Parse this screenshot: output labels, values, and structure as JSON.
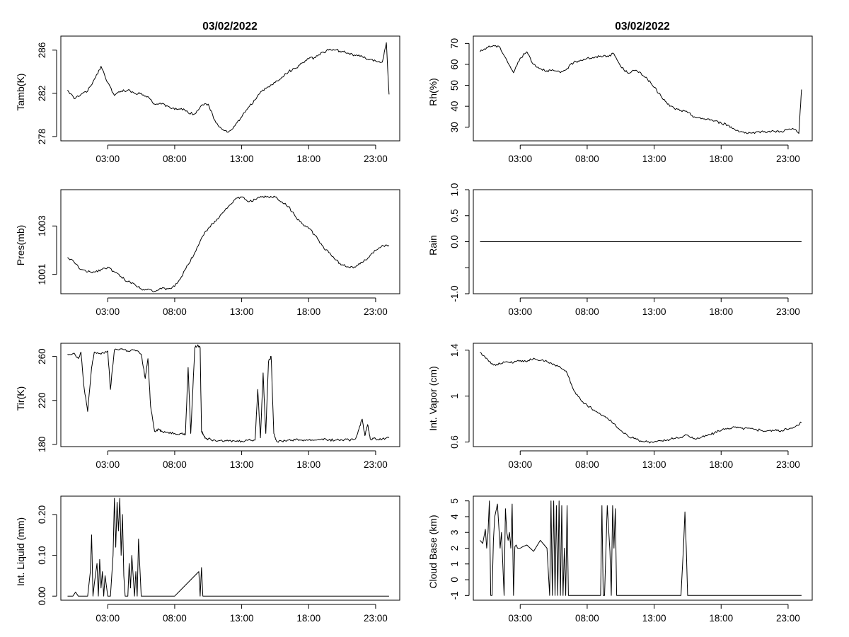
{
  "titles": {
    "left": "03/02/2022",
    "right": "03/02/2022"
  },
  "x_axis": {
    "ticks": [
      3,
      8,
      13,
      18,
      23
    ],
    "tick_labels": [
      "03:00",
      "08:00",
      "13:00",
      "18:00",
      "23:00"
    ],
    "range_hours": [
      -0.5,
      24.8
    ]
  },
  "chart_data": [
    {
      "type": "line",
      "id": "tamb",
      "column": "left",
      "row": 0,
      "ylabel": "Tamb(K)",
      "ylim": [
        277.6,
        287.3
      ],
      "yticks": [
        278,
        282,
        286
      ],
      "series": [
        {
          "x_hours": [
            0,
            0.5,
            1,
            1.5,
            2,
            2.5,
            3,
            3.5,
            4,
            4.5,
            5,
            5.5,
            6,
            6.5,
            7,
            7.5,
            8,
            8.5,
            9,
            9.5,
            10,
            10.5,
            11,
            11.5,
            12,
            12.5,
            13,
            13.5,
            14,
            14.5,
            15,
            15.5,
            16,
            16.5,
            17,
            17.5,
            18,
            18.5,
            19,
            19.5,
            20,
            20.5,
            21,
            21.5,
            22,
            22.5,
            23,
            23.5,
            23.8,
            24
          ],
          "values": [
            282.3,
            281.5,
            281.9,
            282.2,
            283.3,
            284.5,
            283.0,
            281.8,
            282.2,
            282.3,
            282.0,
            282.0,
            281.7,
            281.0,
            281.0,
            280.8,
            280.5,
            280.6,
            280.2,
            280.1,
            280.9,
            281.0,
            279.5,
            278.7,
            278.4,
            279.0,
            279.8,
            280.7,
            281.4,
            282.2,
            282.6,
            283.0,
            283.5,
            284.0,
            284.3,
            284.8,
            285.2,
            285.3,
            285.8,
            286.0,
            286.0,
            285.9,
            285.7,
            285.5,
            285.4,
            285.1,
            285.0,
            284.9,
            286.7,
            281.9
          ]
        }
      ]
    },
    {
      "type": "line",
      "id": "rh",
      "column": "right",
      "row": 0,
      "ylabel": "Rh(%)",
      "ylim": [
        23.5,
        73.5
      ],
      "yticks": [
        30,
        40,
        50,
        60,
        70
      ],
      "series": [
        {
          "x_hours": [
            0,
            0.5,
            1,
            1.5,
            2,
            2.5,
            3,
            3.5,
            4,
            4.5,
            5,
            5.5,
            6,
            6.5,
            7,
            7.5,
            8,
            8.5,
            9,
            9.5,
            10,
            10.5,
            11,
            11.5,
            12,
            12.5,
            13,
            13.5,
            14,
            14.5,
            15,
            15.5,
            16,
            16.5,
            17,
            17.5,
            18,
            18.5,
            19,
            19.5,
            20,
            20.5,
            21,
            21.5,
            22,
            22.5,
            23,
            23.5,
            23.8,
            24
          ],
          "values": [
            66,
            68,
            69,
            68,
            62,
            56,
            63,
            66,
            60,
            58,
            57,
            57,
            56,
            58,
            61,
            62,
            63,
            63,
            64,
            64,
            65,
            59,
            56,
            57,
            56,
            53,
            49,
            45,
            41,
            39,
            38,
            37,
            35,
            34,
            34,
            33,
            32,
            31,
            29,
            28,
            27,
            27,
            28,
            28,
            28,
            28,
            29,
            29,
            27,
            48
          ]
        }
      ]
    },
    {
      "type": "line",
      "id": "pres",
      "column": "left",
      "row": 1,
      "ylabel": "Pres(mb)",
      "ylim": [
        1000.2,
        1004.5
      ],
      "yticks": [
        1001,
        1003
      ],
      "series": [
        {
          "x_hours": [
            0,
            0.5,
            1,
            1.5,
            2,
            2.5,
            3,
            3.5,
            4,
            4.5,
            5,
            5.5,
            6,
            6.5,
            7,
            7.5,
            8,
            8.5,
            9,
            9.5,
            10,
            10.5,
            11,
            11.5,
            12,
            12.5,
            13,
            13.5,
            14,
            14.5,
            15,
            15.5,
            16,
            16.5,
            17,
            17.5,
            18,
            18.5,
            19,
            19.5,
            20,
            20.5,
            21,
            21.5,
            22,
            22.5,
            23,
            23.5,
            24
          ],
          "values": [
            1001.7,
            1001.5,
            1001.2,
            1001.1,
            1001.1,
            1001.2,
            1001.3,
            1001.1,
            1000.9,
            1000.7,
            1000.6,
            1000.4,
            1000.4,
            1000.3,
            1000.4,
            1000.4,
            1000.5,
            1000.9,
            1001.4,
            1001.9,
            1002.5,
            1002.9,
            1003.2,
            1003.5,
            1003.8,
            1004.1,
            1004.2,
            1004.0,
            1004.1,
            1004.2,
            1004.2,
            1004.2,
            1004.0,
            1003.8,
            1003.4,
            1003.1,
            1002.9,
            1002.6,
            1002.2,
            1001.9,
            1001.6,
            1001.4,
            1001.3,
            1001.3,
            1001.5,
            1001.7,
            1002.0,
            1002.2,
            1002.2
          ]
        }
      ]
    },
    {
      "type": "line",
      "id": "rain",
      "column": "right",
      "row": 1,
      "ylabel": "Rain",
      "ylim": [
        -1.0,
        1.0
      ],
      "yticks": [
        -1.0,
        -0.5,
        0.0,
        0.5,
        1.0
      ],
      "ytick_labels": [
        "-1.0",
        "",
        "0.0",
        "0.5",
        "1.0"
      ],
      "series": [
        {
          "x_hours": [
            0,
            24
          ],
          "values": [
            0,
            0
          ]
        }
      ]
    },
    {
      "type": "line",
      "id": "tir",
      "column": "left",
      "row": 2,
      "ylabel": "Tir(K)",
      "ylim": [
        178,
        272
      ],
      "yticks": [
        180,
        220,
        260
      ],
      "series": [
        {
          "x_hours": [
            0,
            0.5,
            0.8,
            1,
            1.2,
            1.5,
            1.8,
            2,
            2.5,
            3,
            3.2,
            3.5,
            4,
            4.5,
            5,
            5.5,
            5.8,
            6,
            6.2,
            6.5,
            6.8,
            7,
            7.5,
            8,
            8.5,
            8.8,
            9,
            9.2,
            9.5,
            9.7,
            9.9,
            10,
            10.1,
            10.3,
            10.5,
            11,
            11.5,
            12,
            12.5,
            13,
            13.5,
            14,
            14.2,
            14.4,
            14.6,
            14.8,
            15,
            15.2,
            15.4,
            15.6,
            16,
            16.5,
            17,
            17.5,
            18,
            18.5,
            19,
            19.5,
            20,
            20.5,
            21,
            21.5,
            21.8,
            22,
            22.2,
            22.4,
            22.6,
            23,
            23.5,
            24
          ],
          "values": [
            262,
            263,
            258,
            264,
            235,
            210,
            250,
            264,
            262,
            265,
            230,
            266,
            267,
            265,
            266,
            262,
            240,
            258,
            215,
            192,
            194,
            192,
            191,
            190,
            190,
            189,
            250,
            190,
            268,
            270,
            268,
            192,
            190,
            186,
            185,
            184,
            184,
            183,
            183,
            183,
            184,
            184,
            230,
            186,
            245,
            190,
            255,
            260,
            190,
            183,
            183,
            184,
            184,
            184,
            184,
            184,
            185,
            184,
            184,
            184,
            184,
            185,
            196,
            203,
            188,
            198,
            185,
            185,
            185,
            186
          ]
        }
      ]
    },
    {
      "type": "line",
      "id": "vapor",
      "column": "right",
      "row": 2,
      "ylabel": "Int. Vapor (cm)",
      "ylim": [
        0.56,
        1.46
      ],
      "yticks": [
        0.6,
        1.0,
        1.4
      ],
      "series": [
        {
          "x_hours": [
            0,
            0.5,
            1,
            1.5,
            2,
            2.5,
            3,
            3.5,
            4,
            4.5,
            5,
            5.5,
            6,
            6.5,
            7,
            7.5,
            8,
            8.5,
            9,
            9.5,
            10,
            10.5,
            11,
            11.5,
            12,
            12.5,
            13,
            13.5,
            14,
            14.5,
            15,
            15.5,
            16,
            16.5,
            17,
            17.5,
            18,
            18.5,
            19,
            19.5,
            20,
            20.5,
            21,
            21.5,
            22,
            22.5,
            23,
            23.5,
            24
          ],
          "values": [
            1.38,
            1.33,
            1.27,
            1.28,
            1.3,
            1.29,
            1.31,
            1.3,
            1.33,
            1.31,
            1.3,
            1.28,
            1.25,
            1.2,
            1.05,
            0.97,
            0.92,
            0.88,
            0.84,
            0.81,
            0.76,
            0.7,
            0.66,
            0.63,
            0.61,
            0.6,
            0.6,
            0.61,
            0.62,
            0.63,
            0.64,
            0.66,
            0.63,
            0.64,
            0.66,
            0.68,
            0.7,
            0.72,
            0.73,
            0.72,
            0.72,
            0.71,
            0.7,
            0.7,
            0.7,
            0.7,
            0.71,
            0.73,
            0.77
          ]
        }
      ]
    },
    {
      "type": "line",
      "id": "liquid",
      "column": "left",
      "row": 3,
      "ylabel": "Int. Liquid (mm)",
      "ylim": [
        -0.01,
        0.245
      ],
      "yticks": [
        0.0,
        0.1,
        0.2
      ],
      "ytick_labels": [
        "0.00",
        "0.10",
        "0.20"
      ],
      "series": [
        {
          "x_hours": [
            0,
            0.4,
            0.6,
            0.8,
            1.0,
            1.5,
            1.7,
            1.8,
            1.9,
            2.0,
            2.2,
            2.3,
            2.4,
            2.5,
            2.6,
            2.7,
            2.8,
            3.0,
            3.2,
            3.4,
            3.5,
            3.6,
            3.7,
            3.8,
            3.9,
            4.0,
            4.1,
            4.2,
            4.3,
            4.5,
            4.6,
            4.7,
            4.8,
            5.0,
            5.1,
            5.2,
            5.3,
            5.5,
            6.0,
            8.0,
            9.8,
            9.9,
            10.0,
            10.1,
            10.2,
            11,
            24
          ],
          "values": [
            0,
            0,
            0.01,
            0,
            0,
            0,
            0.06,
            0.15,
            0,
            0.03,
            0.08,
            0,
            0.09,
            0.02,
            0.06,
            0,
            0.05,
            0,
            0,
            0.1,
            0.24,
            0.12,
            0.23,
            0.16,
            0.24,
            0.1,
            0.2,
            0.05,
            0,
            0,
            0.08,
            0.02,
            0.1,
            0,
            0.06,
            0,
            0.14,
            0,
            0,
            0,
            0.06,
            0,
            0.07,
            0,
            0,
            0,
            0
          ]
        }
      ]
    },
    {
      "type": "line",
      "id": "cloudbase",
      "column": "right",
      "row": 3,
      "ylabel": "Cloud Base (km)",
      "ylim": [
        -1.3,
        5.3
      ],
      "yticks": [
        -1,
        0,
        1,
        2,
        3,
        4,
        5
      ],
      "series": [
        {
          "x_hours": [
            0,
            0.2,
            0.4,
            0.5,
            0.6,
            0.7,
            0.8,
            0.9,
            1.0,
            1.1,
            1.3,
            1.5,
            1.6,
            1.8,
            1.9,
            2.0,
            2.1,
            2.2,
            2.3,
            2.4,
            2.5,
            2.6,
            2.7,
            2.8,
            3.0,
            3.2,
            3.5,
            4.0,
            4.5,
            5.0,
            5.2,
            5.3,
            5.4,
            5.5,
            5.6,
            5.7,
            5.8,
            5.9,
            6.0,
            6.1,
            6.2,
            6.3,
            6.4,
            6.5,
            6.6,
            6.8,
            7,
            8,
            9,
            9.1,
            9.2,
            9.3,
            9.5,
            9.7,
            9.8,
            9.9,
            10.0,
            10.1,
            10.2,
            10.3,
            11,
            13,
            14.5,
            15.0,
            15.2,
            15.3,
            15.4,
            15.5,
            15.6,
            16,
            24
          ],
          "values": [
            2.5,
            2.3,
            3.2,
            2,
            3,
            5,
            -1,
            -1,
            2.5,
            4,
            4.8,
            2,
            3,
            -1,
            4.5,
            3,
            2.5,
            3,
            2,
            4.8,
            -1,
            2.1,
            2.2,
            2,
            2,
            2.1,
            2.2,
            1.8,
            2.5,
            2,
            -1,
            5,
            -1,
            5,
            -1,
            4.7,
            -1,
            5,
            -1,
            4.7,
            -1,
            2,
            -1,
            4.7,
            -1,
            -1,
            -1,
            -1,
            -1,
            4.7,
            -1,
            -1,
            4.7,
            1.8,
            -1,
            4.7,
            2,
            4.5,
            -1,
            -1,
            -1,
            -1,
            -1,
            -1,
            2.2,
            4.3,
            2,
            -1,
            -1,
            -1,
            -1
          ]
        }
      ]
    }
  ]
}
